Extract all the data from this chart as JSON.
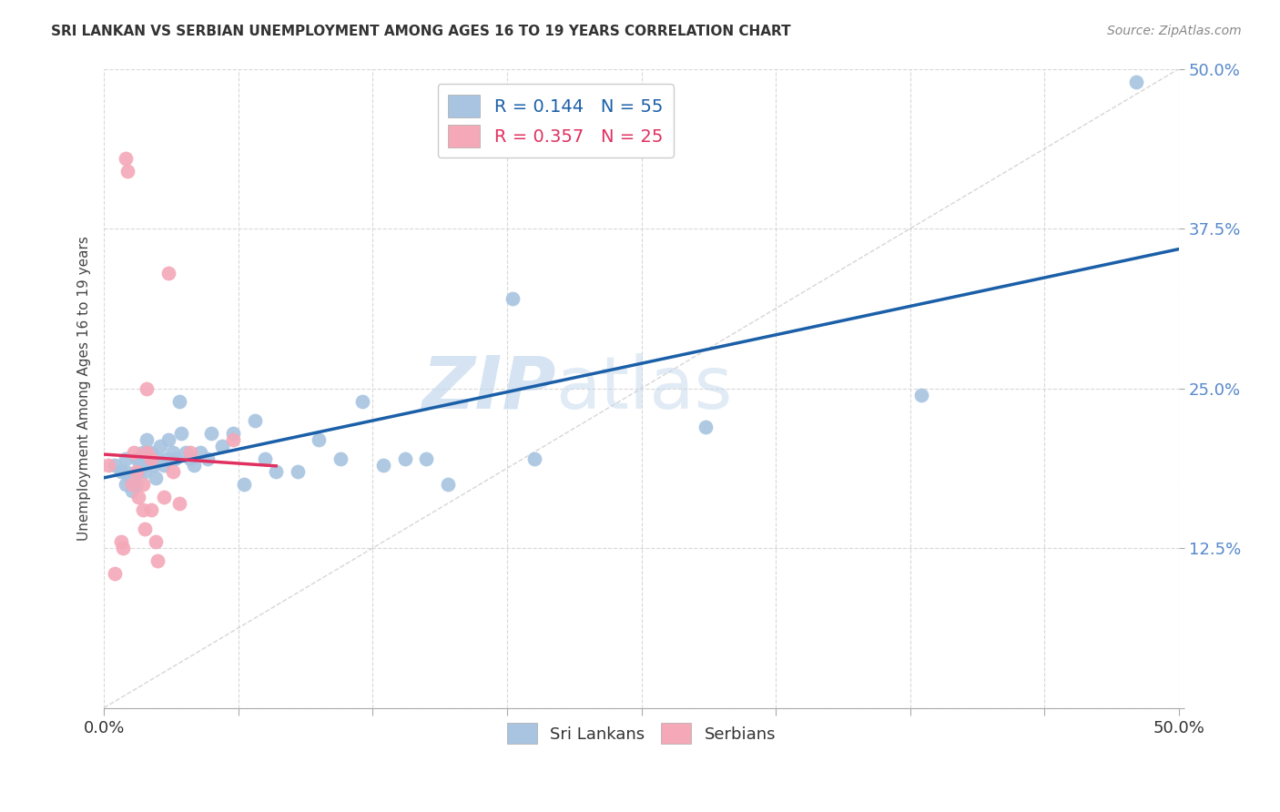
{
  "title": "SRI LANKAN VS SERBIAN UNEMPLOYMENT AMONG AGES 16 TO 19 YEARS CORRELATION CHART",
  "source": "Source: ZipAtlas.com",
  "ylabel": "Unemployment Among Ages 16 to 19 years",
  "xlim": [
    0.0,
    0.5
  ],
  "ylim": [
    0.0,
    0.5
  ],
  "xticks": [
    0.0,
    0.0625,
    0.125,
    0.1875,
    0.25,
    0.3125,
    0.375,
    0.4375,
    0.5
  ],
  "xticklabels": [
    "0.0%",
    "",
    "",
    "",
    "",
    "",
    "",
    "",
    "50.0%"
  ],
  "yticks": [
    0.0,
    0.125,
    0.25,
    0.375,
    0.5
  ],
  "yticklabels": [
    "",
    "12.5%",
    "25.0%",
    "37.5%",
    "50.0%"
  ],
  "sri_lankan_R": "0.144",
  "sri_lankan_N": "55",
  "serbian_R": "0.357",
  "serbian_N": "25",
  "sri_lankan_color": "#a8c4e0",
  "serbian_color": "#f4a8b8",
  "trend_sri_color": "#1a5fa8",
  "trend_serbian_color": "#e03060",
  "diagonal_color": "#cccccc",
  "watermark_zip": "ZIP",
  "watermark_atlas": "atlas",
  "sri_lankan_x": [
    0.005,
    0.008,
    0.01,
    0.01,
    0.01,
    0.012,
    0.013,
    0.015,
    0.015,
    0.015,
    0.016,
    0.016,
    0.018,
    0.018,
    0.019,
    0.02,
    0.02,
    0.021,
    0.022,
    0.023,
    0.024,
    0.025,
    0.026,
    0.028,
    0.029,
    0.03,
    0.032,
    0.033,
    0.035,
    0.036,
    0.038,
    0.04,
    0.042,
    0.045,
    0.048,
    0.05,
    0.055,
    0.06,
    0.065,
    0.07,
    0.075,
    0.08,
    0.09,
    0.1,
    0.11,
    0.12,
    0.13,
    0.14,
    0.15,
    0.16,
    0.19,
    0.2,
    0.28,
    0.38,
    0.48
  ],
  "sri_lankan_y": [
    0.19,
    0.185,
    0.195,
    0.185,
    0.175,
    0.18,
    0.17,
    0.195,
    0.185,
    0.175,
    0.195,
    0.185,
    0.2,
    0.19,
    0.185,
    0.21,
    0.2,
    0.195,
    0.2,
    0.19,
    0.18,
    0.195,
    0.205,
    0.19,
    0.195,
    0.21,
    0.2,
    0.195,
    0.24,
    0.215,
    0.2,
    0.195,
    0.19,
    0.2,
    0.195,
    0.215,
    0.205,
    0.215,
    0.175,
    0.225,
    0.195,
    0.185,
    0.185,
    0.21,
    0.195,
    0.24,
    0.19,
    0.195,
    0.195,
    0.175,
    0.32,
    0.195,
    0.22,
    0.245,
    0.49
  ],
  "serbian_x": [
    0.002,
    0.005,
    0.008,
    0.009,
    0.01,
    0.011,
    0.013,
    0.014,
    0.015,
    0.016,
    0.018,
    0.018,
    0.019,
    0.02,
    0.02,
    0.022,
    0.022,
    0.024,
    0.025,
    0.028,
    0.03,
    0.032,
    0.035,
    0.04,
    0.06
  ],
  "serbian_y": [
    0.19,
    0.105,
    0.13,
    0.125,
    0.43,
    0.42,
    0.175,
    0.2,
    0.185,
    0.165,
    0.155,
    0.175,
    0.14,
    0.25,
    0.2,
    0.195,
    0.155,
    0.13,
    0.115,
    0.165,
    0.34,
    0.185,
    0.16,
    0.2,
    0.21
  ]
}
